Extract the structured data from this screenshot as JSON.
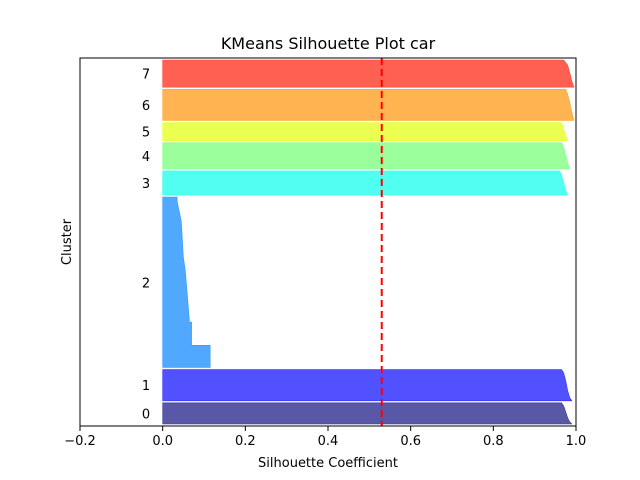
{
  "chart_data": {
    "type": "area",
    "title": "KMeans Silhouette Plot car",
    "xlabel": "Silhouette Coefficient",
    "ylabel": "Cluster",
    "xlim": [
      -0.2,
      1.0
    ],
    "xticks": [
      "−0.2",
      "0.0",
      "0.2",
      "0.4",
      "0.6",
      "0.8",
      "1.0"
    ],
    "xtick_values": [
      -0.2,
      0.0,
      0.2,
      0.4,
      0.6,
      0.8,
      1.0
    ],
    "yticks_shown": false,
    "grid": false,
    "average_silhouette": 0.53,
    "average_line_style": "red dashed vertical line",
    "clusters": [
      {
        "label": "0",
        "color": "#3b3b98",
        "y_range": [
          0,
          21
        ],
        "profile": [
          [
            0,
            0.99
          ],
          [
            2,
            0.985
          ],
          [
            6,
            0.98
          ],
          [
            12,
            0.975
          ],
          [
            18,
            0.97
          ],
          [
            21,
            0.965
          ]
        ]
      },
      {
        "label": "1",
        "color": "#3333ff",
        "y_range": [
          23,
          54
        ],
        "profile": [
          [
            0,
            0.99
          ],
          [
            3,
            0.985
          ],
          [
            10,
            0.98
          ],
          [
            20,
            0.975
          ],
          [
            28,
            0.97
          ],
          [
            31,
            0.965
          ]
        ]
      },
      {
        "label": "2",
        "color": "#3399ff",
        "y_range": [
          56,
          225
        ],
        "profile": [
          [
            0,
            0.115
          ],
          [
            22,
            0.115
          ],
          [
            22,
            0.07
          ],
          [
            45,
            0.07
          ],
          [
            45,
            0.065
          ],
          [
            70,
            0.06
          ],
          [
            95,
            0.055
          ],
          [
            110,
            0.05
          ],
          [
            125,
            0.048
          ],
          [
            145,
            0.045
          ],
          [
            155,
            0.04
          ],
          [
            165,
            0.035
          ],
          [
            169,
            0.035
          ]
        ]
      },
      {
        "label": "3",
        "color": "#33ffee",
        "y_range": [
          227,
          251
        ],
        "profile": [
          [
            0,
            0.98
          ],
          [
            5,
            0.975
          ],
          [
            12,
            0.97
          ],
          [
            20,
            0.965
          ],
          [
            24,
            0.96
          ]
        ]
      },
      {
        "label": "4",
        "color": "#88ff88",
        "y_range": [
          253,
          279
        ],
        "profile": [
          [
            0,
            0.985
          ],
          [
            6,
            0.98
          ],
          [
            14,
            0.975
          ],
          [
            22,
            0.97
          ],
          [
            26,
            0.965
          ]
        ]
      },
      {
        "label": "5",
        "color": "#e8ff33",
        "y_range": [
          281,
          299
        ],
        "profile": [
          [
            0,
            0.98
          ],
          [
            5,
            0.975
          ],
          [
            12,
            0.97
          ],
          [
            18,
            0.965
          ]
        ]
      },
      {
        "label": "6",
        "color": "#ffa733",
        "y_range": [
          301,
          332
        ],
        "profile": [
          [
            0,
            0.995
          ],
          [
            8,
            0.99
          ],
          [
            18,
            0.985
          ],
          [
            26,
            0.98
          ],
          [
            31,
            0.975
          ]
        ]
      },
      {
        "label": "7",
        "color": "#ff4433",
        "y_range": [
          334,
          361
        ],
        "profile": [
          [
            0,
            0.995
          ],
          [
            6,
            0.99
          ],
          [
            14,
            0.985
          ],
          [
            22,
            0.98
          ],
          [
            27,
            0.97
          ]
        ]
      }
    ],
    "y_extent": [
      -2,
      363
    ]
  }
}
